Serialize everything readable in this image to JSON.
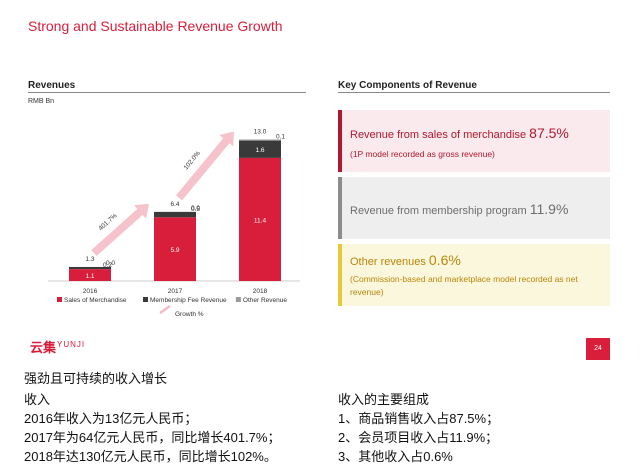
{
  "slide": {
    "title": "Strong and Sustainable Revenue Growth",
    "page_number": "24",
    "logo_cn": "云集",
    "logo_en": "YUNJI"
  },
  "left": {
    "heading": "Revenues",
    "unit": "RMB Bn"
  },
  "right": {
    "heading": "Key Components of Revenue",
    "cards": [
      {
        "main": "Revenue from sales of merchandise",
        "pct": "87.5%",
        "sub": "(1P model recorded as gross revenue)"
      },
      {
        "main": "Revenue from membership program",
        "pct": "11.9%",
        "sub": ""
      },
      {
        "main": "Other revenues",
        "pct": "0.6%",
        "sub": "(Commission-based and marketplace model recorded as net revenue)"
      }
    ]
  },
  "chart_data": {
    "type": "bar",
    "stacked": true,
    "categories": [
      "2016",
      "2017",
      "2018"
    ],
    "series": [
      {
        "name": "Sales of Merchandise",
        "values": [
          1.1,
          5.9,
          11.4
        ],
        "labels": [
          "1.1",
          "5.9",
          "11.4"
        ],
        "color": "#d81e3a"
      },
      {
        "name": "Membership Fee Revenue",
        "values": [
          0.2,
          0.5,
          1.6
        ],
        "labels": [
          "0.2",
          "0.5",
          "1.6"
        ],
        "color": "#3a3a3a"
      },
      {
        "name": "Other Revenue",
        "values": [
          0.0,
          0.0,
          0.1
        ],
        "labels": [
          "0.0",
          "0.0",
          "0.1"
        ],
        "color": "#9a9a9a"
      }
    ],
    "totals": [
      "1.3",
      "6.4",
      "13.0"
    ],
    "growth": {
      "name": "Growth %",
      "labels": [
        "401.7%",
        "102.0%"
      ],
      "color": "#f5b8c3"
    },
    "ylim": [
      0,
      14
    ]
  },
  "caption": {
    "title": "强劲且可持续的收入增长",
    "left_lines": [
      "收入",
      "2016年收入为13亿元人民币；",
      "2017年为64亿元人民币，同比增长401.7%；",
      "2018年达130亿元人民币，同比增长102%。"
    ],
    "right_lines": [
      "收入的主要组成",
      "1、商品销售收入占87.5%；",
      "2、会员项目收入占11.9%；",
      "3、其他收入占0.6%"
    ]
  }
}
